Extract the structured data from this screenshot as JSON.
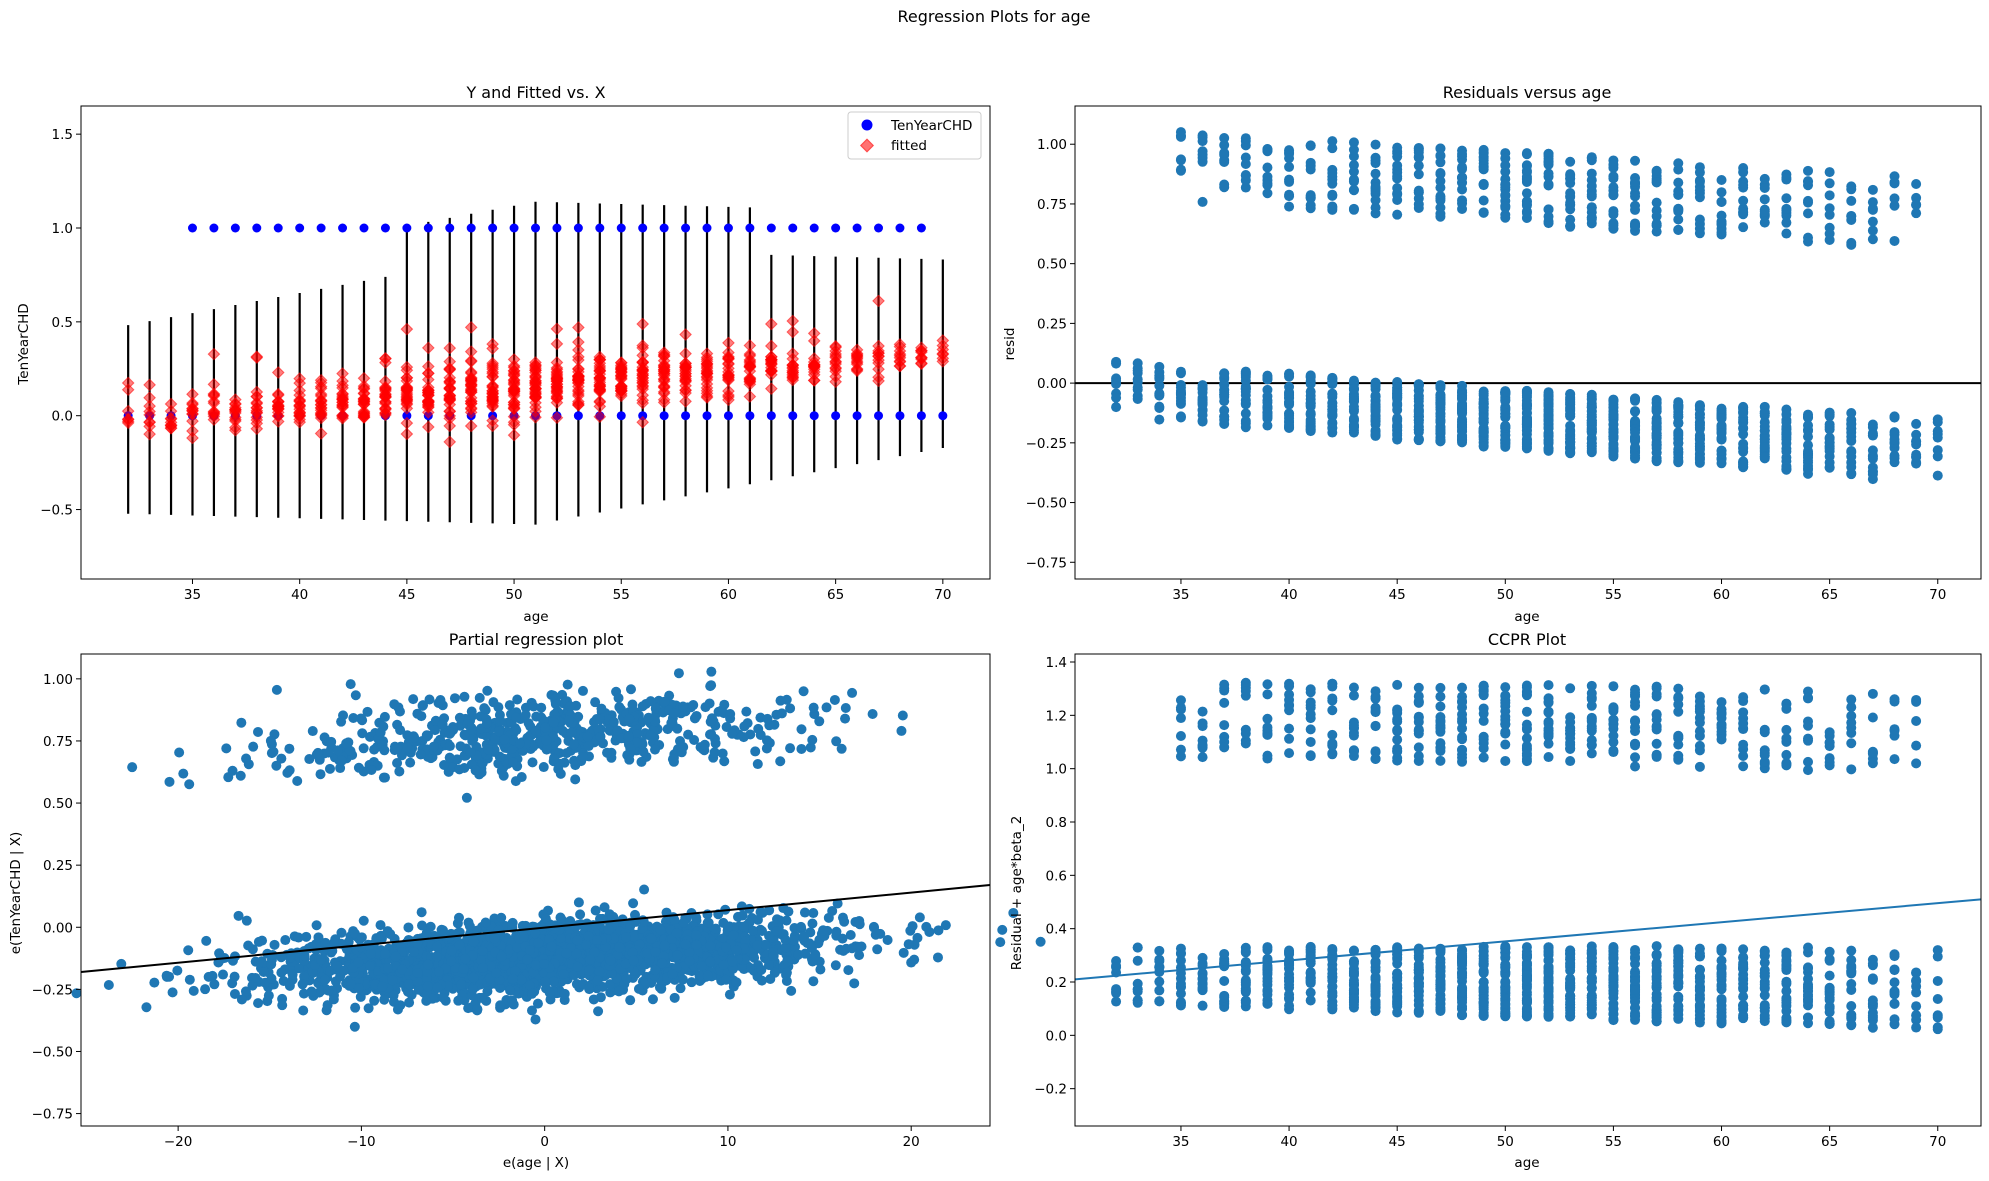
{
  "figure": {
    "title": "Regression Plots for age"
  },
  "colors": {
    "blue": "#1f77b4",
    "observed": "#0000ff",
    "fitted": "#ff0000",
    "line": "#000000"
  },
  "chart_data": [
    {
      "id": "yfitted",
      "type": "scatter",
      "title": "Y and Fitted vs. X",
      "xlabel": "age",
      "ylabel": "TenYearCHD",
      "xlim": [
        29.8,
        72.2
      ],
      "ylim": [
        -0.87,
        1.65
      ],
      "xticks": [
        35,
        40,
        45,
        50,
        55,
        60,
        65,
        70
      ],
      "yticks": [
        -0.5,
        0.0,
        0.5,
        1.0,
        1.5
      ],
      "xtick_labels": [
        "35",
        "40",
        "45",
        "50",
        "55",
        "60",
        "65",
        "70"
      ],
      "ytick_labels": [
        "−0.5",
        "0.0",
        "0.5",
        "1.0",
        "1.5"
      ],
      "legend": {
        "position": "upper-right",
        "entries": [
          "TenYearCHD",
          "fitted"
        ]
      },
      "series": [
        {
          "name": "TenYearCHD",
          "marker": "circle",
          "x_range": [
            32,
            70
          ],
          "y_values": [
            0,
            1
          ],
          "y1_x_range": [
            35,
            69
          ]
        },
        {
          "name": "fitted",
          "marker": "diamond",
          "x_range": [
            32,
            70
          ],
          "center": {
            "at_x": [
              32,
              70
            ],
            "y": [
              -0.02,
              0.33
            ]
          }
        }
      ],
      "error_bars": {
        "x_range": [
          32,
          70
        ],
        "approx_half_width": 0.7
      }
    },
    {
      "id": "resid",
      "type": "scatter",
      "title": "Residuals versus age",
      "xlabel": "age",
      "ylabel": "resid",
      "xlim": [
        30.1,
        72.0
      ],
      "ylim": [
        -0.82,
        1.16
      ],
      "xticks": [
        35,
        40,
        45,
        50,
        55,
        60,
        65,
        70
      ],
      "yticks": [
        -0.75,
        -0.5,
        -0.25,
        0.0,
        0.25,
        0.5,
        0.75,
        1.0
      ],
      "xtick_labels": [
        "35",
        "40",
        "45",
        "50",
        "55",
        "60",
        "65",
        "70"
      ],
      "ytick_labels": [
        "−0.75",
        "−0.50",
        "−0.25",
        "0.00",
        "0.25",
        "0.50",
        "0.75",
        "1.00"
      ],
      "hline": 0.0,
      "clusters": {
        "x_range": [
          32,
          70
        ],
        "upper_top": [
          1.08,
          0.86
        ],
        "upper_bottom": [
          0.76,
          0.55
        ],
        "lower_top": [
          0.09,
          -0.15
        ],
        "lower_bottom": [
          -0.15,
          -0.45
        ]
      }
    },
    {
      "id": "partreg",
      "type": "scatter",
      "title": "Partial regression plot",
      "xlabel": "e(age | X)",
      "ylabel": "e(TenYearCHD | X)",
      "xlim": [
        -25.3,
        24.3
      ],
      "ylim": [
        -0.8,
        1.1
      ],
      "xticks": [
        -20,
        -10,
        0,
        10,
        20
      ],
      "yticks": [
        -0.75,
        -0.5,
        -0.25,
        0.0,
        0.25,
        0.5,
        0.75,
        1.0
      ],
      "xtick_labels": [
        "−20",
        "−10",
        "0",
        "10",
        "20"
      ],
      "ytick_labels": [
        "−0.75",
        "−0.50",
        "−0.25",
        "0.00",
        "0.25",
        "0.50",
        "0.75",
        "1.00"
      ],
      "fit_line": {
        "x": [
          -25.3,
          24.3
        ],
        "y": [
          -0.18,
          0.17
        ]
      },
      "clusters": {
        "lower_center": -0.12,
        "upper_center": 0.78
      }
    },
    {
      "id": "ccpr",
      "type": "scatter",
      "title": "CCPR Plot",
      "xlabel": "age",
      "ylabel": "Residual + age*beta_2",
      "xlim": [
        30.1,
        72.0
      ],
      "ylim": [
        -0.34,
        1.43
      ],
      "xticks": [
        35,
        40,
        45,
        50,
        55,
        60,
        65,
        70
      ],
      "yticks": [
        -0.2,
        0.0,
        0.2,
        0.4,
        0.6,
        0.8,
        1.0,
        1.2,
        1.4
      ],
      "xtick_labels": [
        "35",
        "40",
        "45",
        "50",
        "55",
        "60",
        "65",
        "70"
      ],
      "ytick_labels": [
        "−0.2",
        "0.0",
        "0.2",
        "0.4",
        "0.6",
        "0.8",
        "1.0",
        "1.2",
        "1.4"
      ],
      "fit_line": {
        "x": [
          30.1,
          72.0
        ],
        "y": [
          0.21,
          0.51
        ]
      }
    }
  ]
}
